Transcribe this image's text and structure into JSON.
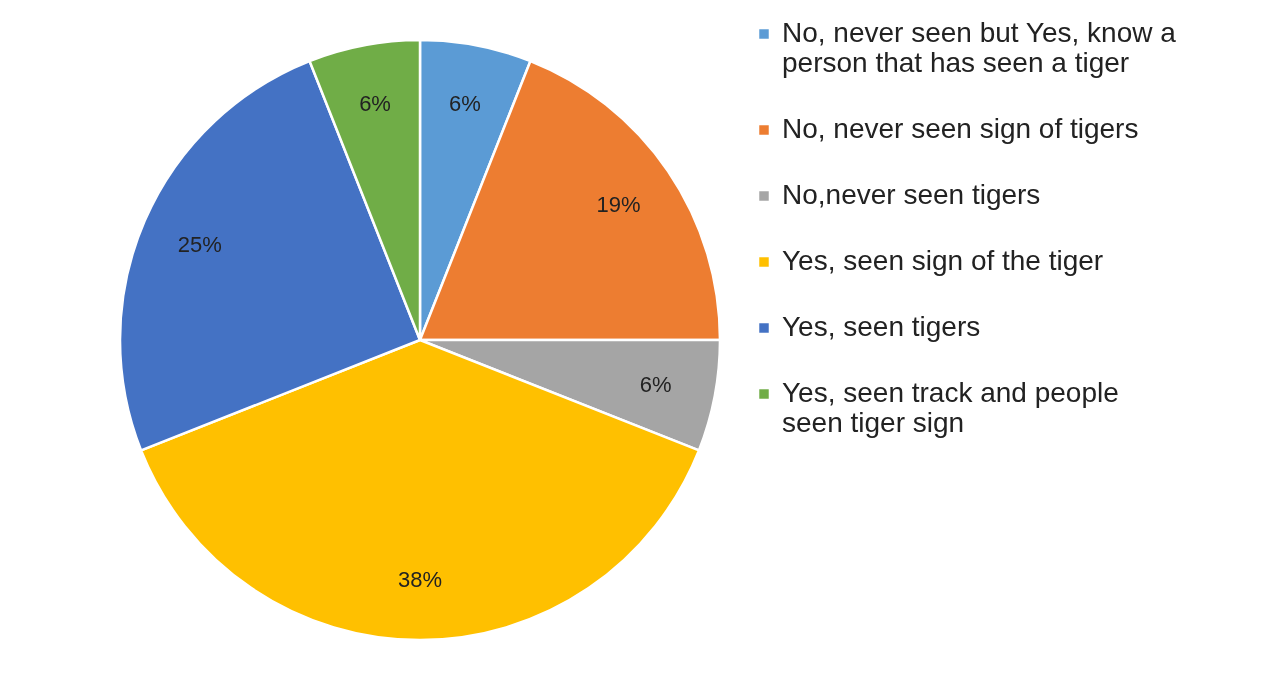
{
  "chart_data": {
    "type": "pie",
    "categories": [
      "No, never seen but Yes, know a person that has seen a tiger",
      "No, never seen sign of tigers",
      "No,never seen tigers",
      "Yes, seen sign of the tiger",
      "Yes, seen tigers",
      "Yes, seen track and people seen tiger sign"
    ],
    "values": [
      6,
      19,
      6,
      38,
      25,
      6
    ],
    "colors": [
      "#5b9bd5",
      "#ed7d31",
      "#a5a5a5",
      "#ffc000",
      "#4472c4",
      "#70ad47"
    ],
    "value_labels": [
      "6%",
      "19%",
      "6%",
      "38%",
      "25%",
      "6%"
    ],
    "legend": "right"
  }
}
